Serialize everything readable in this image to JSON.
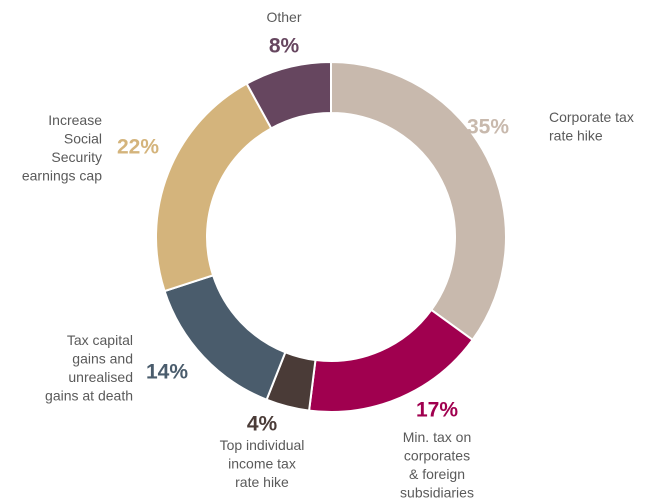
{
  "chart_data": {
    "type": "donut",
    "categories": [
      "Corporate tax\nrate hike",
      "Min. tax on\ncorporates\n& foreign\nsubsidiaries",
      "Top individual\nincome tax\nrate hike",
      "Tax capital\ngains and\nunrealised\ngains at death",
      "Increase\nSocial\nSecurity\nearnings cap",
      "Other"
    ],
    "values": [
      35,
      17,
      4,
      14,
      22,
      8
    ],
    "value_labels": [
      "35%",
      "17%",
      "4%",
      "14%",
      "22%",
      "8%"
    ],
    "colors": [
      "#c8b9ad",
      "#a0004f",
      "#4a3b37",
      "#4a5c6c",
      "#d4b47c",
      "#66465f"
    ]
  }
}
